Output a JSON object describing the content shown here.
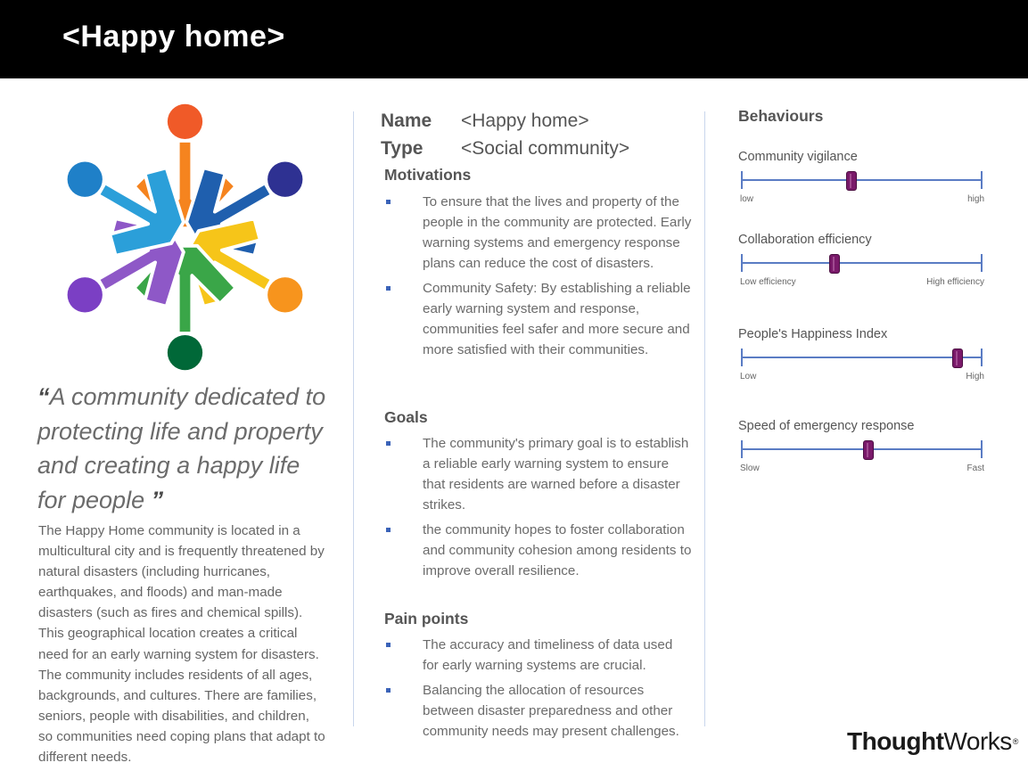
{
  "header": {
    "title": "<Happy home>"
  },
  "colors": {
    "header_bg": "#000000",
    "bullet": "#3b63b8",
    "slider_track": "#5a7cc4",
    "slider_thumb": "#7a1a6a"
  },
  "logo": {
    "icon": "community-people-circle-icon",
    "figure_colors": [
      "#f5841f",
      "#1f5fae",
      "#f6c519",
      "#3aa648",
      "#8e58c7",
      "#2b9fd9"
    ],
    "head_colors": [
      "#f05a28",
      "#2e3192",
      "#f7941d",
      "#006838",
      "#7b3fc4",
      "#1f80c8"
    ]
  },
  "quote": {
    "open": "“",
    "text": "A community dedicated to protecting life and property and creating a happy life for people",
    "close": " ”"
  },
  "description": "The Happy Home community is located in a multicultural city and is frequently threatened by natural disasters (including hurricanes, earthquakes, and floods) and man-made disasters (such as fires and chemical spills). This geographical location creates a critical need for an early warning system for disasters. The community includes residents of all ages, backgrounds, and cultures. There are families, seniors, people with disabilities, and children, so communities need coping plans that adapt to different needs.",
  "profile": {
    "name_label": "Name",
    "name_value": "<Happy home>",
    "type_label": "Type",
    "type_value": "<Social community>"
  },
  "motivations": {
    "heading": "Motivations",
    "items": [
      "To ensure that the lives and property of the people in the community are protected. Early warning systems and emergency response plans can reduce the cost of disasters.",
      "Community Safety: By establishing a reliable early warning system and response, communities feel safer and more secure and more satisfied with their communities."
    ]
  },
  "goals": {
    "heading": "Goals",
    "items": [
      "The community's primary goal is to establish a reliable early warning system to ensure that residents are warned before a disaster strikes.",
      "the community hopes to foster collaboration and community cohesion among residents to improve overall resilience."
    ]
  },
  "pain_points": {
    "heading": "Pain points",
    "items": [
      "The accuracy and timeliness of data used for early warning systems are crucial.",
      "Balancing the allocation of resources between disaster preparedness and other community needs may present challenges."
    ]
  },
  "behaviours": {
    "heading": "Behaviours",
    "sliders": [
      {
        "label": "Community vigilance",
        "low": "low",
        "high": "high",
        "value": 0.46
      },
      {
        "label": "Collaboration efficiency",
        "low": "Low efficiency",
        "high": "High efficiency",
        "value": 0.39
      },
      {
        "label": "People's Happiness Index",
        "low": "Low",
        "high": "High",
        "value": 0.9
      },
      {
        "label": "Speed of emergency response",
        "low": "Slow",
        "high": "Fast",
        "value": 0.53
      }
    ]
  },
  "brand": {
    "bold": "Thought",
    "regular": "Works",
    "mark": "®"
  }
}
